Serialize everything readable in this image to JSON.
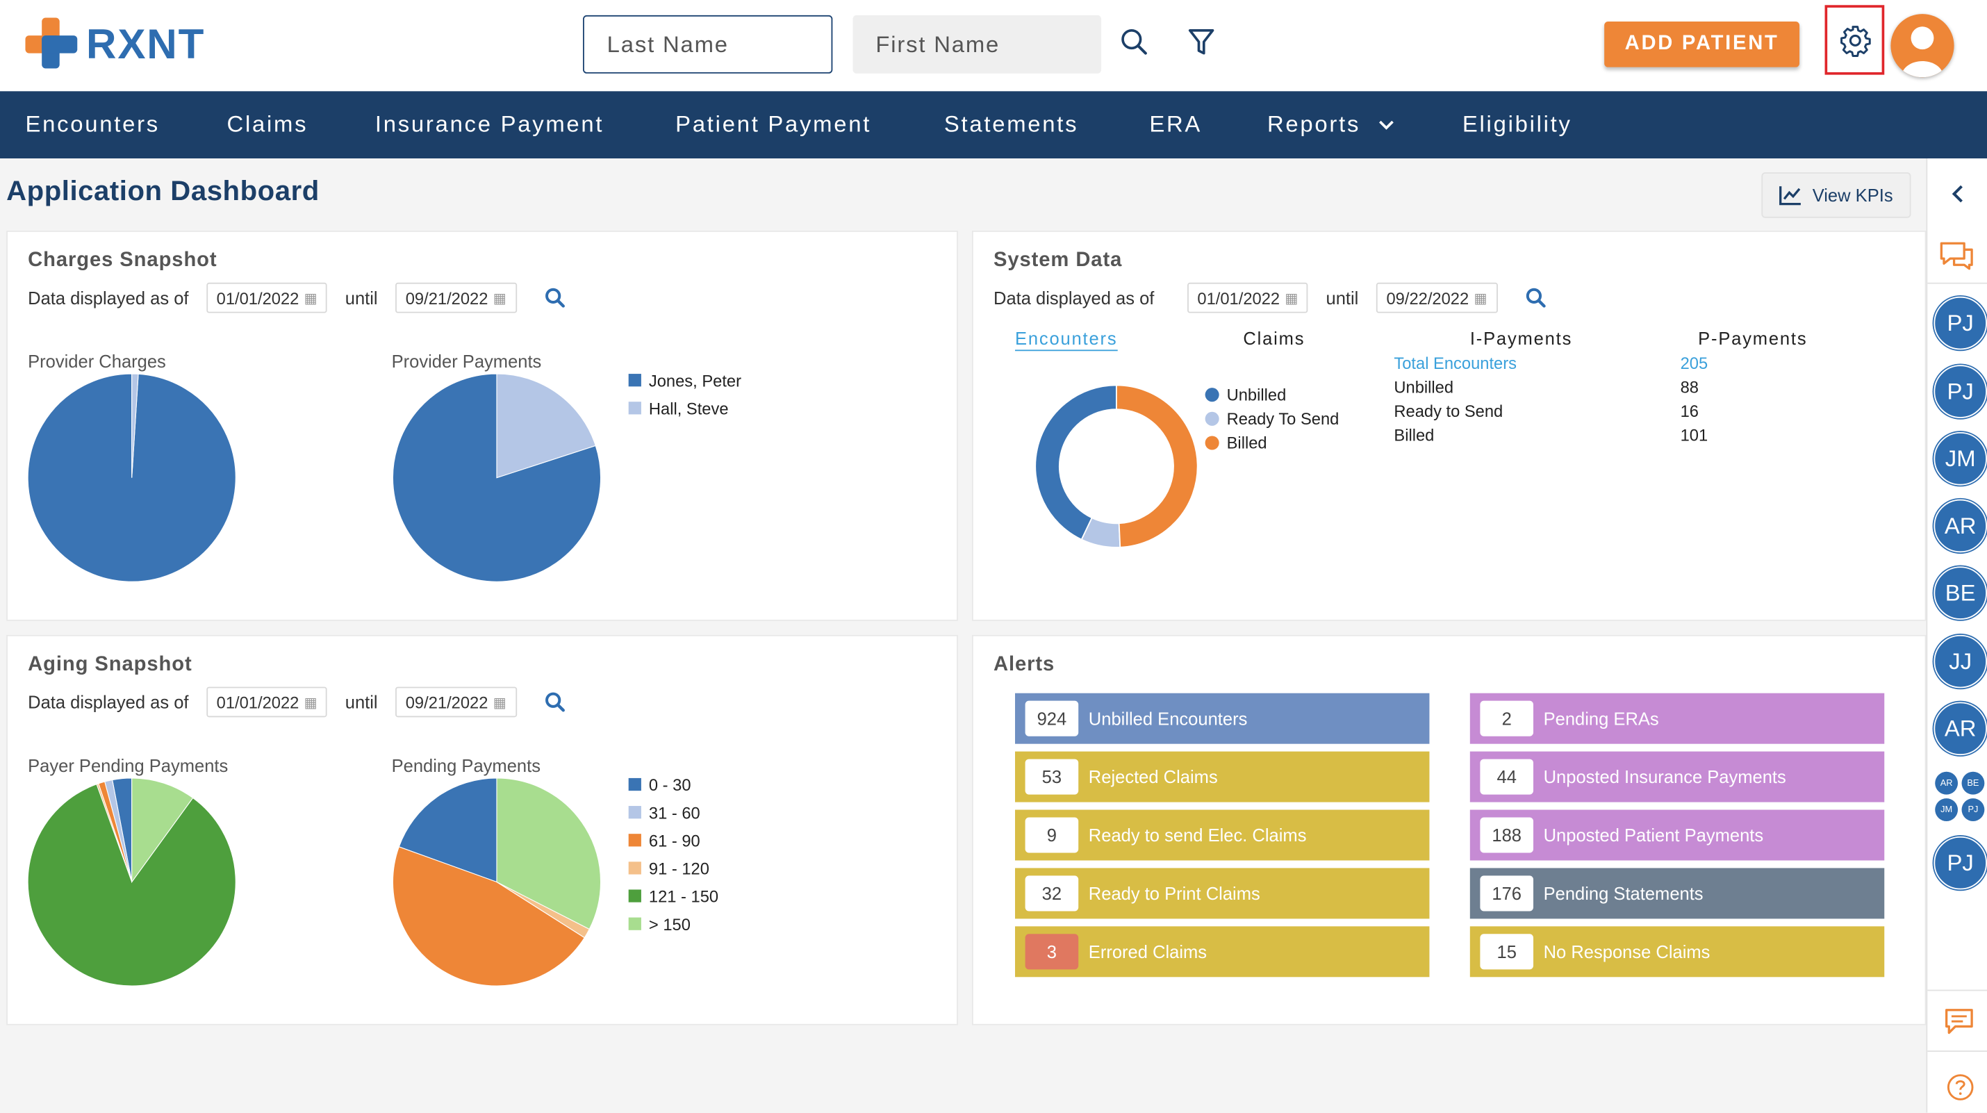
{
  "brand": {
    "name": "RXNT"
  },
  "search": {
    "last_placeholder": "Last Name",
    "first_placeholder": "First Name"
  },
  "header": {
    "add_patient": "ADD PATIENT",
    "icons": [
      "search-icon",
      "filter-icon",
      "gear-icon",
      "user-avatar"
    ]
  },
  "nav": {
    "items": [
      "Encounters",
      "Claims",
      "Insurance Payment",
      "Patient Payment",
      "Statements",
      "ERA",
      "Reports",
      "Eligibility"
    ]
  },
  "page": {
    "title": "Application Dashboard",
    "view_kpis": "View KPIs"
  },
  "charges": {
    "title": "Charges Snapshot",
    "displayed_as_of": "Data displayed as of",
    "until": "until",
    "from": "01/01/2022",
    "to": "09/21/2022",
    "provider_charges": "Provider Charges",
    "provider_payments": "Provider Payments",
    "legend": [
      "Jones, Peter",
      "Hall, Steve"
    ]
  },
  "system": {
    "title": "System Data",
    "displayed_as_of": "Data displayed as of",
    "until": "until",
    "from": "01/01/2022",
    "to": "09/22/2022",
    "tabs": [
      "Encounters",
      "Claims",
      "I-Payments",
      "P-Payments"
    ],
    "legend": [
      "Unbilled",
      "Ready To Send",
      "Billed"
    ],
    "rows": [
      {
        "label": "Total Encounters",
        "value": "205"
      },
      {
        "label": "Unbilled",
        "value": "88"
      },
      {
        "label": "Ready to Send",
        "value": "16"
      },
      {
        "label": "Billed",
        "value": "101"
      }
    ]
  },
  "aging": {
    "title": "Aging Snapshot",
    "displayed_as_of": "Data displayed as of",
    "until": "until",
    "from": "01/01/2022",
    "to": "09/21/2022",
    "payer_pending": "Payer Pending Payments",
    "pending": "Pending Payments",
    "legend": [
      "0 - 30",
      "31 - 60",
      "61 - 90",
      "91 - 120",
      "121 - 150",
      "> 150"
    ]
  },
  "alerts": {
    "title": "Alerts",
    "left": [
      {
        "count": "924",
        "label": "Unbilled Encounters",
        "color": "#6f8fc2"
      },
      {
        "count": "53",
        "label": "Rejected Claims",
        "color": "#d8bd45"
      },
      {
        "count": "9",
        "label": "Ready to send Elec. Claims",
        "color": "#d8bd45"
      },
      {
        "count": "32",
        "label": "Ready to Print Claims",
        "color": "#d8bd45"
      },
      {
        "count": "3",
        "label": "Errored Claims",
        "color": "#d8bd45"
      }
    ],
    "right": [
      {
        "count": "2",
        "label": "Pending ERAs",
        "color": "#c68bd4"
      },
      {
        "count": "44",
        "label": "Unposted Insurance Payments",
        "color": "#c68bd4"
      },
      {
        "count": "188",
        "label": "Unposted Patient Payments",
        "color": "#c68bd4"
      },
      {
        "count": "176",
        "label": "Pending Statements",
        "color": "#6e7f91"
      },
      {
        "count": "15",
        "label": "No Response Claims",
        "color": "#d8bd45"
      }
    ]
  },
  "rail": {
    "avatars": [
      "PJ",
      "PJ",
      "JM",
      "AR",
      "BE",
      "JJ",
      "AR"
    ],
    "group": [
      "AR",
      "BE",
      "JM",
      "PJ"
    ],
    "last": "PJ"
  },
  "colors": {
    "brand_blue": "#2e6db0",
    "nav": "#1c3f68",
    "orange": "#ee8637",
    "light_blue": "#b4c6e6",
    "green": "#4e9f3d",
    "light_green": "#a8dd8f",
    "peach": "#f4c08a"
  },
  "chart_data": [
    {
      "type": "pie",
      "title": "Provider Charges",
      "categories": [
        "Jones, Peter",
        "Hall, Steve"
      ],
      "values": [
        99,
        1
      ]
    },
    {
      "type": "pie",
      "title": "Provider Payments",
      "categories": [
        "Jones, Peter",
        "Hall, Steve"
      ],
      "values": [
        80,
        20
      ]
    },
    {
      "type": "pie",
      "title": "Claims",
      "categories": [
        "Unbilled",
        "Ready To Send",
        "Billed"
      ],
      "values": [
        88,
        16,
        101
      ]
    },
    {
      "type": "pie",
      "title": "Payer Pending Payments",
      "categories": [
        "0 - 30",
        "31 - 60",
        "61 - 90",
        "91 - 120",
        "121 - 150",
        "> 150"
      ],
      "values": [
        3,
        1.2,
        1,
        0.3,
        84.5,
        10
      ]
    },
    {
      "type": "pie",
      "title": "Pending Payments",
      "categories": [
        "0 - 30",
        "31 - 60",
        "61 - 90",
        "91 - 120",
        "121 - 150",
        "> 150"
      ],
      "values": [
        19.5,
        0,
        46.5,
        1.5,
        0,
        32.5
      ]
    }
  ]
}
